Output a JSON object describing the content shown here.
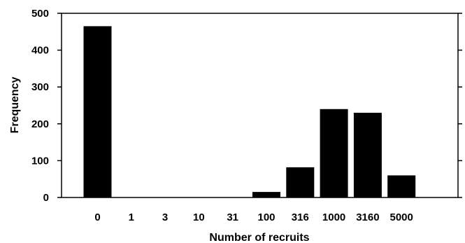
{
  "chart_data": {
    "type": "bar",
    "categories": [
      "0",
      "1",
      "3",
      "10",
      "31",
      "100",
      "316",
      "1000",
      "3160",
      "5000"
    ],
    "values": [
      465,
      0,
      0,
      0,
      0,
      15,
      82,
      240,
      230,
      60
    ],
    "title": "",
    "xlabel": "Number of recruits",
    "ylabel": "Frequency",
    "ylim": [
      0,
      500
    ],
    "yticks": [
      "0",
      "100",
      "200",
      "300",
      "400",
      "500"
    ],
    "grid": false,
    "bar_color": "#000000"
  }
}
